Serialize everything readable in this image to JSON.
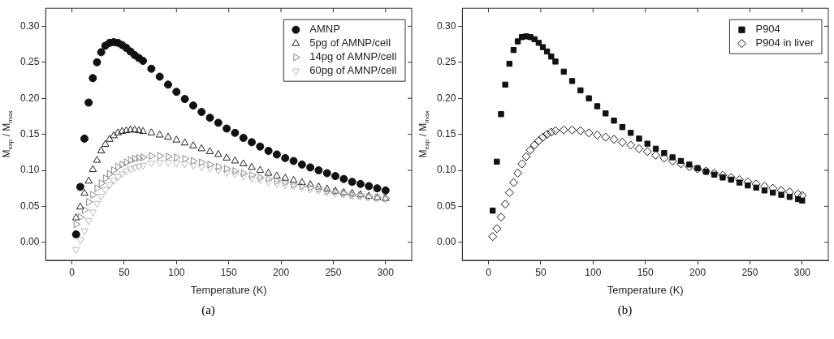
{
  "chart_data": [
    {
      "type": "scatter",
      "xlabel": "Temperature (K)",
      "ylabel": "M$_{exp}$ / M$_{max}$",
      "annotations": [
        "(a)"
      ],
      "xlim": [
        -25,
        325
      ],
      "xticks": [
        0,
        50,
        100,
        150,
        200,
        250,
        300
      ],
      "ylim": [
        -0.025,
        0.325
      ],
      "yticks": [
        {
          "value": 0,
          "label": "0.00"
        },
        0.05,
        {
          "value": 0.1,
          "label": "0.10"
        },
        0.15,
        {
          "value": 0.2,
          "label": "0.20"
        },
        0.25,
        {
          "value": 0.3,
          "label": "0.30"
        }
      ],
      "grid": false,
      "legend": "top right",
      "x": [
        4,
        8,
        12,
        16,
        20,
        24,
        28,
        32,
        36,
        40,
        44,
        48,
        52,
        56,
        60,
        64,
        68,
        76,
        84,
        92,
        100,
        108,
        116,
        124,
        132,
        140,
        148,
        156,
        164,
        172,
        180,
        188,
        196,
        204,
        212,
        220,
        228,
        236,
        244,
        252,
        260,
        268,
        276,
        284,
        292,
        300
      ],
      "series": [
        {
          "name": "AMNP",
          "color": "#111111",
          "marker": "circle",
          "values": [
            0.011,
            0.077,
            0.144,
            0.194,
            0.228,
            0.25,
            0.264,
            0.273,
            0.277,
            0.278,
            0.277,
            0.274,
            0.27,
            0.265,
            0.26,
            0.256,
            0.252,
            0.241,
            0.23,
            0.219,
            0.209,
            0.199,
            0.19,
            0.181,
            0.173,
            0.166,
            0.158,
            0.152,
            0.145,
            0.139,
            0.133,
            0.127,
            0.122,
            0.117,
            0.113,
            0.108,
            0.104,
            0.1,
            0.096,
            0.092,
            0.088,
            0.084,
            0.081,
            0.078,
            0.075,
            0.072
          ]
        },
        {
          "name": "5pg of AMNP/cell",
          "color": "#222222",
          "marker": "triangle",
          "values": [
            0.034,
            0.049,
            0.068,
            0.085,
            0.101,
            0.114,
            0.127,
            0.136,
            0.143,
            0.148,
            0.152,
            0.154,
            0.155,
            0.156,
            0.156,
            0.155,
            0.154,
            0.152,
            0.149,
            0.146,
            0.142,
            0.138,
            0.134,
            0.13,
            0.126,
            0.122,
            0.117,
            0.113,
            0.109,
            0.104,
            0.1,
            0.096,
            0.092,
            0.089,
            0.086,
            0.083,
            0.08,
            0.077,
            0.074,
            0.071,
            0.069,
            0.068,
            0.066,
            0.064,
            0.062,
            0.061
          ]
        },
        {
          "name": "14pg of AMNP/cell",
          "color": "#888888",
          "marker": "triangle-right",
          "values": [
            0.025,
            0.035,
            0.045,
            0.056,
            0.066,
            0.075,
            0.082,
            0.089,
            0.095,
            0.1,
            0.105,
            0.108,
            0.111,
            0.114,
            0.116,
            0.117,
            0.118,
            0.12,
            0.12,
            0.119,
            0.118,
            0.116,
            0.113,
            0.111,
            0.108,
            0.105,
            0.102,
            0.099,
            0.096,
            0.093,
            0.09,
            0.088,
            0.085,
            0.083,
            0.08,
            0.078,
            0.076,
            0.074,
            0.071,
            0.07,
            0.068,
            0.066,
            0.065,
            0.063,
            0.062,
            0.061
          ]
        },
        {
          "name": "60pg of AMNP/cell",
          "color": "#bbbbbb",
          "marker": "triangle-down",
          "values": [
            -0.01,
            0.003,
            0.016,
            0.03,
            0.042,
            0.054,
            0.064,
            0.073,
            0.08,
            0.086,
            0.091,
            0.095,
            0.099,
            0.102,
            0.104,
            0.106,
            0.107,
            0.11,
            0.111,
            0.111,
            0.11,
            0.109,
            0.107,
            0.105,
            0.103,
            0.1,
            0.097,
            0.095,
            0.092,
            0.089,
            0.087,
            0.084,
            0.082,
            0.08,
            0.078,
            0.076,
            0.074,
            0.072,
            0.07,
            0.068,
            0.067,
            0.065,
            0.064,
            0.063,
            0.061,
            0.06
          ]
        }
      ]
    },
    {
      "type": "scatter",
      "xlabel": "Temperature (K)",
      "ylabel": "M$_{exp}$ / M$_{max}$",
      "annotations": [
        "(b)"
      ],
      "xlim": [
        -25,
        325
      ],
      "xticks": [
        0,
        50,
        100,
        150,
        200,
        250,
        300
      ],
      "ylim": [
        -0.025,
        0.325
      ],
      "yticks": [
        {
          "value": 0,
          "label": "0.00"
        },
        0.05,
        {
          "value": 0.1,
          "label": "0.10"
        },
        0.15,
        {
          "value": 0.2,
          "label": "0.20"
        },
        0.25,
        {
          "value": 0.3,
          "label": "0.30"
        }
      ],
      "grid": false,
      "legend": "top right",
      "x": [
        4,
        8,
        12,
        16,
        20,
        24,
        28,
        32,
        36,
        40,
        44,
        48,
        52,
        56,
        60,
        64,
        72,
        80,
        88,
        96,
        104,
        112,
        120,
        128,
        136,
        144,
        152,
        160,
        168,
        176,
        184,
        192,
        200,
        208,
        216,
        224,
        232,
        240,
        248,
        256,
        264,
        272,
        280,
        288,
        296,
        300
      ],
      "series": [
        {
          "name": "P904",
          "color": "#111111",
          "marker": "square",
          "values": [
            0.044,
            0.112,
            0.178,
            0.219,
            0.248,
            0.267,
            0.279,
            0.285,
            0.286,
            0.285,
            0.282,
            0.277,
            0.271,
            0.265,
            0.258,
            0.251,
            0.237,
            0.224,
            0.211,
            0.2,
            0.189,
            0.179,
            0.169,
            0.16,
            0.152,
            0.144,
            0.137,
            0.13,
            0.124,
            0.118,
            0.113,
            0.108,
            0.103,
            0.098,
            0.094,
            0.09,
            0.087,
            0.083,
            0.079,
            0.076,
            0.072,
            0.069,
            0.066,
            0.063,
            0.06,
            0.058
          ]
        },
        {
          "name": "P904 in liver",
          "color": "#111111",
          "marker": "diamond",
          "values": [
            0.008,
            0.019,
            0.035,
            0.053,
            0.069,
            0.083,
            0.096,
            0.109,
            0.119,
            0.128,
            0.135,
            0.141,
            0.146,
            0.15,
            0.153,
            0.155,
            0.156,
            0.156,
            0.155,
            0.152,
            0.149,
            0.146,
            0.143,
            0.139,
            0.135,
            0.13,
            0.126,
            0.121,
            0.117,
            0.113,
            0.109,
            0.105,
            0.102,
            0.099,
            0.096,
            0.093,
            0.09,
            0.087,
            0.084,
            0.081,
            0.078,
            0.075,
            0.072,
            0.07,
            0.067,
            0.065
          ]
        }
      ]
    }
  ]
}
